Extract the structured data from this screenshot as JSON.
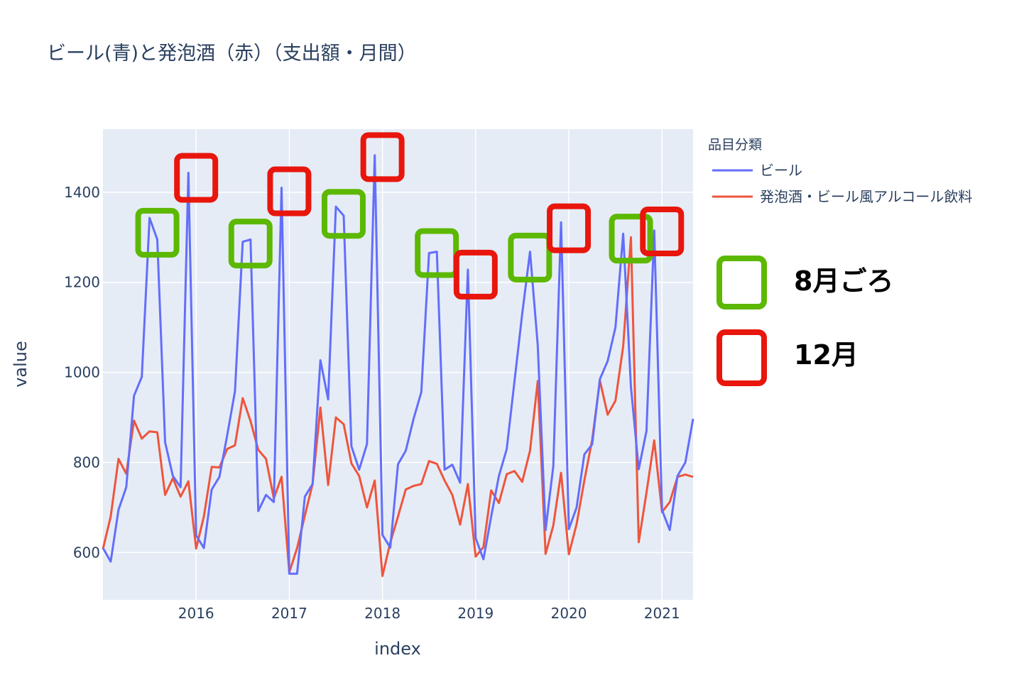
{
  "colors": {
    "beer": "#636efa",
    "happoshu": "#ef553b",
    "green_box": "#5cb800",
    "red_box": "#e8160c",
    "plot_bg": "#e5ecf6",
    "text": "#2a3f5f"
  },
  "annotations": {
    "green_label": "8月ごろ",
    "red_label": "12月"
  },
  "chart_data": {
    "type": "line",
    "title": "ビール(青)と発泡酒（赤）（支出額・月間）",
    "xlabel": "index",
    "ylabel": "value",
    "xlim": [
      "2015-01",
      "2021-05"
    ],
    "ylim": [
      495,
      1540
    ],
    "x_ticks": [
      "2016",
      "2017",
      "2018",
      "2019",
      "2020",
      "2021"
    ],
    "y_ticks": [
      600,
      800,
      1000,
      1200,
      1400
    ],
    "grid": true,
    "legend_title": "品目分類",
    "legend_position": "right",
    "x": [
      "2015-01",
      "2015-02",
      "2015-03",
      "2015-04",
      "2015-05",
      "2015-06",
      "2015-07",
      "2015-08",
      "2015-09",
      "2015-10",
      "2015-11",
      "2015-12",
      "2016-01",
      "2016-02",
      "2016-03",
      "2016-04",
      "2016-05",
      "2016-06",
      "2016-07",
      "2016-08",
      "2016-09",
      "2016-10",
      "2016-11",
      "2016-12",
      "2017-01",
      "2017-02",
      "2017-03",
      "2017-04",
      "2017-05",
      "2017-06",
      "2017-07",
      "2017-08",
      "2017-09",
      "2017-10",
      "2017-11",
      "2017-12",
      "2018-01",
      "2018-02",
      "2018-03",
      "2018-04",
      "2018-05",
      "2018-06",
      "2018-07",
      "2018-08",
      "2018-09",
      "2018-10",
      "2018-11",
      "2018-12",
      "2019-01",
      "2019-02",
      "2019-03",
      "2019-04",
      "2019-05",
      "2019-06",
      "2019-07",
      "2019-08",
      "2019-09",
      "2019-10",
      "2019-11",
      "2019-12",
      "2020-01",
      "2020-02",
      "2020-03",
      "2020-04",
      "2020-05",
      "2020-06",
      "2020-07",
      "2020-08",
      "2020-09",
      "2020-10",
      "2020-11",
      "2020-12",
      "2021-01",
      "2021-02",
      "2021-03",
      "2021-04",
      "2021-05"
    ],
    "series": [
      {
        "name": "ビール",
        "values": [
          610,
          580,
          695,
          745,
          948,
          990,
          1343,
          1295,
          845,
          770,
          745,
          1443,
          638,
          610,
          740,
          768,
          860,
          958,
          1290,
          1295,
          692,
          728,
          712,
          1410,
          553,
          553,
          724,
          752,
          1027,
          940,
          1368,
          1348,
          836,
          784,
          841,
          1482,
          639,
          611,
          796,
          826,
          897,
          956,
          1265,
          1268,
          784,
          795,
          755,
          1228,
          632,
          585,
          680,
          770,
          830,
          980,
          1130,
          1268,
          1060,
          650,
          792,
          1333,
          652,
          700,
          818,
          840,
          985,
          1025,
          1100,
          1308,
          968,
          785,
          870,
          1315,
          694,
          650,
          770,
          800,
          897
        ]
      },
      {
        "name": "発泡酒・ビール風アルコール飲料",
        "values": [
          608,
          680,
          808,
          775,
          893,
          853,
          869,
          867,
          728,
          765,
          724,
          758,
          609,
          680,
          790,
          789,
          830,
          838,
          943,
          892,
          828,
          808,
          720,
          768,
          556,
          610,
          682,
          752,
          922,
          750,
          900,
          885,
          798,
          770,
          700,
          760,
          548,
          622,
          680,
          740,
          748,
          752,
          803,
          797,
          760,
          728,
          662,
          752,
          591,
          612,
          738,
          710,
          774,
          781,
          757,
          826,
          981,
          597,
          660,
          777,
          596,
          663,
          760,
          850,
          982,
          906,
          937,
          1058,
          1300,
          623,
          733,
          849,
          690,
          712,
          768,
          773,
          768
        ]
      }
    ],
    "highlight_boxes": [
      {
        "kind": "green",
        "x": "2015-08",
        "y": 1310
      },
      {
        "kind": "red",
        "x": "2016-01",
        "y": 1432
      },
      {
        "kind": "green",
        "x": "2016-08",
        "y": 1286
      },
      {
        "kind": "red",
        "x": "2017-01",
        "y": 1402
      },
      {
        "kind": "green",
        "x": "2017-08",
        "y": 1352
      },
      {
        "kind": "red",
        "x": "2018-01",
        "y": 1478
      },
      {
        "kind": "green",
        "x": "2018-08",
        "y": 1265
      },
      {
        "kind": "red",
        "x": "2019-01",
        "y": 1217
      },
      {
        "kind": "green",
        "x": "2019-08",
        "y": 1255
      },
      {
        "kind": "red",
        "x": "2020-01",
        "y": 1320
      },
      {
        "kind": "green",
        "x": "2020-09",
        "y": 1297
      },
      {
        "kind": "red",
        "x": "2021-01",
        "y": 1313
      }
    ]
  }
}
